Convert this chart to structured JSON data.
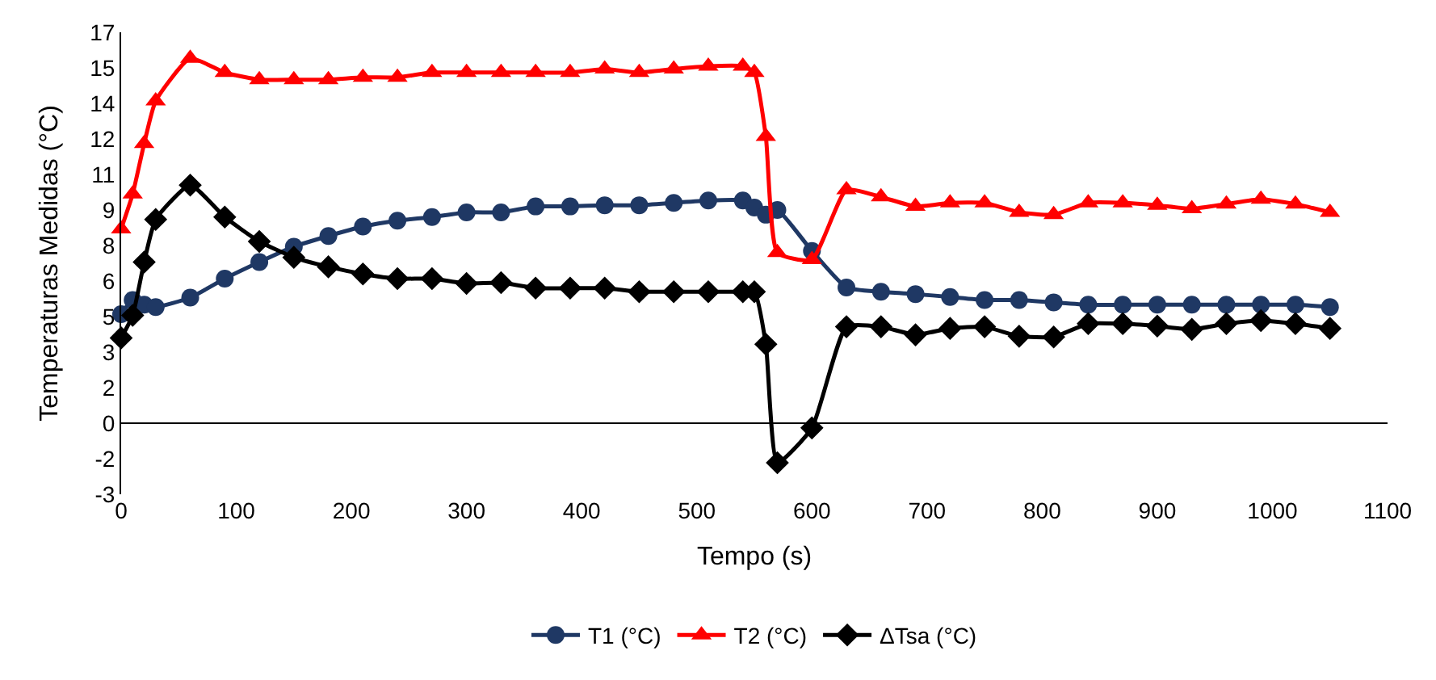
{
  "chart_data": {
    "type": "line",
    "xlabel": "Tempo (s)",
    "ylabel": "Temperaturas Medidas (°C)",
    "x": [
      0,
      10,
      20,
      30,
      60,
      90,
      120,
      150,
      180,
      210,
      240,
      270,
      300,
      330,
      360,
      390,
      420,
      450,
      480,
      510,
      540,
      550,
      560,
      570,
      600,
      630,
      660,
      690,
      720,
      750,
      780,
      810,
      840,
      870,
      900,
      930,
      960,
      990,
      1020,
      1050
    ],
    "series": [
      {
        "name": "T1 (°C)",
        "color": "#1f3864",
        "marker": "circle",
        "values": [
          4.6,
          5.2,
          5.0,
          4.9,
          5.3,
          6.1,
          6.8,
          7.45,
          7.9,
          8.3,
          8.55,
          8.7,
          8.9,
          8.9,
          9.15,
          9.15,
          9.2,
          9.2,
          9.3,
          9.4,
          9.4,
          9.1,
          8.8,
          9.0,
          7.27,
          5.73,
          5.55,
          5.45,
          5.33,
          5.2,
          5.2,
          5.1,
          5.0,
          5.0,
          5.0,
          5.0,
          5.0,
          5.0,
          5.0,
          4.9
        ]
      },
      {
        "name": "T2 (°C)",
        "color": "#ff0000",
        "marker": "triangle",
        "values": [
          8.2,
          9.67,
          11.8,
          13.6,
          15.4,
          14.8,
          14.5,
          14.5,
          14.5,
          14.6,
          14.6,
          14.8,
          14.8,
          14.8,
          14.8,
          14.8,
          14.95,
          14.8,
          14.95,
          15.07,
          15.07,
          14.8,
          12.1,
          7.2,
          6.9,
          9.85,
          9.55,
          9.15,
          9.3,
          9.3,
          8.9,
          8.8,
          9.3,
          9.3,
          9.2,
          9.05,
          9.25,
          9.45,
          9.25,
          8.9
        ]
      },
      {
        "name": "ΔTsa (°C)",
        "color": "#000000",
        "marker": "diamond",
        "values": [
          3.6,
          4.55,
          6.8,
          8.6,
          10.05,
          8.7,
          7.67,
          7.0,
          6.6,
          6.3,
          6.1,
          6.1,
          5.9,
          5.93,
          5.7,
          5.7,
          5.7,
          5.55,
          5.55,
          5.55,
          5.55,
          5.55,
          3.33,
          -1.67,
          -0.2,
          4.07,
          4.07,
          3.73,
          4.0,
          4.07,
          3.67,
          3.64,
          4.2,
          4.2,
          4.1,
          3.96,
          4.2,
          4.33,
          4.2,
          4.0
        ]
      }
    ],
    "xlim": [
      0,
      1100
    ],
    "xticks": [
      0,
      100,
      200,
      300,
      400,
      500,
      600,
      700,
      800,
      900,
      1000,
      1100
    ],
    "ylim": [
      -3,
      16.5
    ],
    "yticks": [
      -3,
      {
        "value": -1.5,
        "label": "-2"
      },
      0,
      {
        "value": 1.5,
        "label": "2"
      },
      3,
      {
        "value": 4.5,
        "label": "5"
      },
      6,
      {
        "value": 7.5,
        "label": "8"
      },
      9,
      {
        "value": 10.5,
        "label": "11"
      },
      12,
      {
        "value": 13.5,
        "label": "14"
      },
      15,
      {
        "value": 16.5,
        "label": "17"
      }
    ],
    "legend": "bottom",
    "line_style": "solid"
  }
}
